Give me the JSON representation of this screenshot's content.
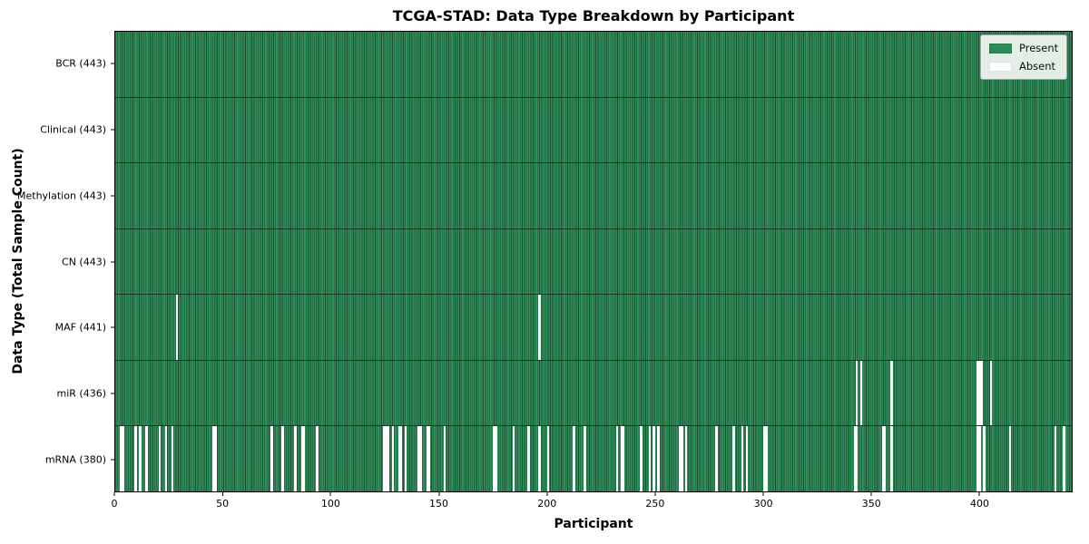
{
  "title": "TCGA-STAD: Data Type Breakdown by Participant",
  "xlabel": "Participant",
  "ylabel": "Data Type (Total Sample Count)",
  "chart_data": {
    "type": "heatmap",
    "title": "TCGA-STAD: Data Type Breakdown by Participant",
    "xlabel": "Participant",
    "ylabel": "Data Type (Total Sample Count)",
    "n_participants": 443,
    "x_axis": {
      "ticks": [
        0,
        50,
        100,
        150,
        200,
        250,
        300,
        350,
        400
      ],
      "range": [
        0,
        443
      ]
    },
    "colors": {
      "present": "#2e8b57",
      "absent": "#ffffff",
      "cell_edge": "#14301f",
      "frame": "#000000"
    },
    "legend": [
      {
        "label": "Present",
        "color": "#2e8b57"
      },
      {
        "label": "Absent",
        "color": "#ffffff"
      }
    ],
    "legend_position": "upper right",
    "rows": [
      {
        "label": "BCR (443)",
        "data_type": "BCR",
        "present_count": 443,
        "absent_count": 0,
        "absent_participants": []
      },
      {
        "label": "Clinical (443)",
        "data_type": "Clinical",
        "present_count": 443,
        "absent_count": 0,
        "absent_participants": []
      },
      {
        "label": "Methylation (443)",
        "data_type": "Methylation",
        "present_count": 443,
        "absent_count": 0,
        "absent_participants": []
      },
      {
        "label": "CN (443)",
        "data_type": "CN",
        "present_count": 443,
        "absent_count": 0,
        "absent_participants": []
      },
      {
        "label": "MAF (441)",
        "data_type": "MAF",
        "present_count": 441,
        "absent_count": 2,
        "absent_participants": [
          28,
          196
        ]
      },
      {
        "label": "miR (436)",
        "data_type": "miR",
        "present_count": 436,
        "absent_count": 7,
        "absent_participants": [
          343,
          345,
          359,
          399,
          400,
          401,
          405
        ]
      },
      {
        "label": "mRNA (380)",
        "data_type": "mRNA",
        "present_count": 380,
        "absent_count": 63,
        "absent_participants": [
          2,
          3,
          9,
          11,
          14,
          20,
          23,
          26,
          45,
          46,
          72,
          77,
          83,
          86,
          87,
          93,
          124,
          125,
          126,
          128,
          131,
          132,
          134,
          140,
          141,
          144,
          145,
          152,
          175,
          176,
          184,
          191,
          196,
          200,
          212,
          217,
          232,
          234,
          235,
          243,
          247,
          249,
          251,
          261,
          262,
          264,
          278,
          286,
          290,
          292,
          300,
          301,
          342,
          343,
          355,
          356,
          359,
          399,
          400,
          402,
          414,
          435,
          439
        ]
      }
    ]
  }
}
